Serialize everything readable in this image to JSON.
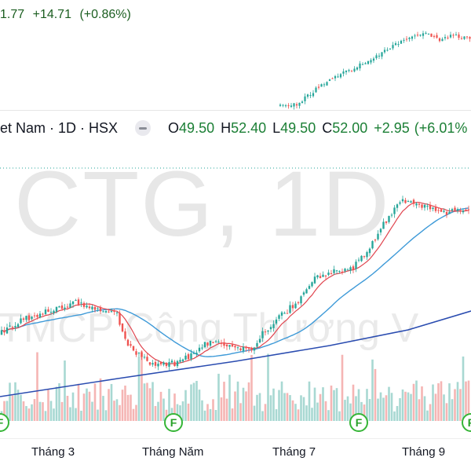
{
  "top_pane": {
    "last_fragment": "1.77",
    "change": "+14.71",
    "change_pct": "(+0.86%)"
  },
  "legend": {
    "title_fragment": "et Nam · 1D · HSX",
    "o_label": "O",
    "o_value": "49.50",
    "h_label": "H",
    "h_value": "52.40",
    "l_label": "L",
    "l_value": "49.50",
    "c_label": "C",
    "c_value": "52.00",
    "change": "+2.95",
    "change_pct": "(+6.01%"
  },
  "watermark": {
    "symbol": "CTG, 1D",
    "company_fragment": "TMCP Công Thương V"
  },
  "time_axis": {
    "ticks": [
      "Tháng 3",
      "Tháng Năm",
      "Tháng 7",
      "Tháng 9"
    ]
  },
  "events": {
    "badge_label": "F",
    "count": 4
  },
  "colors": {
    "up": "#26a69a",
    "down": "#ef5350",
    "ma_fast": "#e0454f",
    "ma_mid": "#3e9ad8",
    "ma_slow": "#2a4cb0",
    "positive_text": "#1b7f35",
    "event_green": "#35b536"
  }
}
